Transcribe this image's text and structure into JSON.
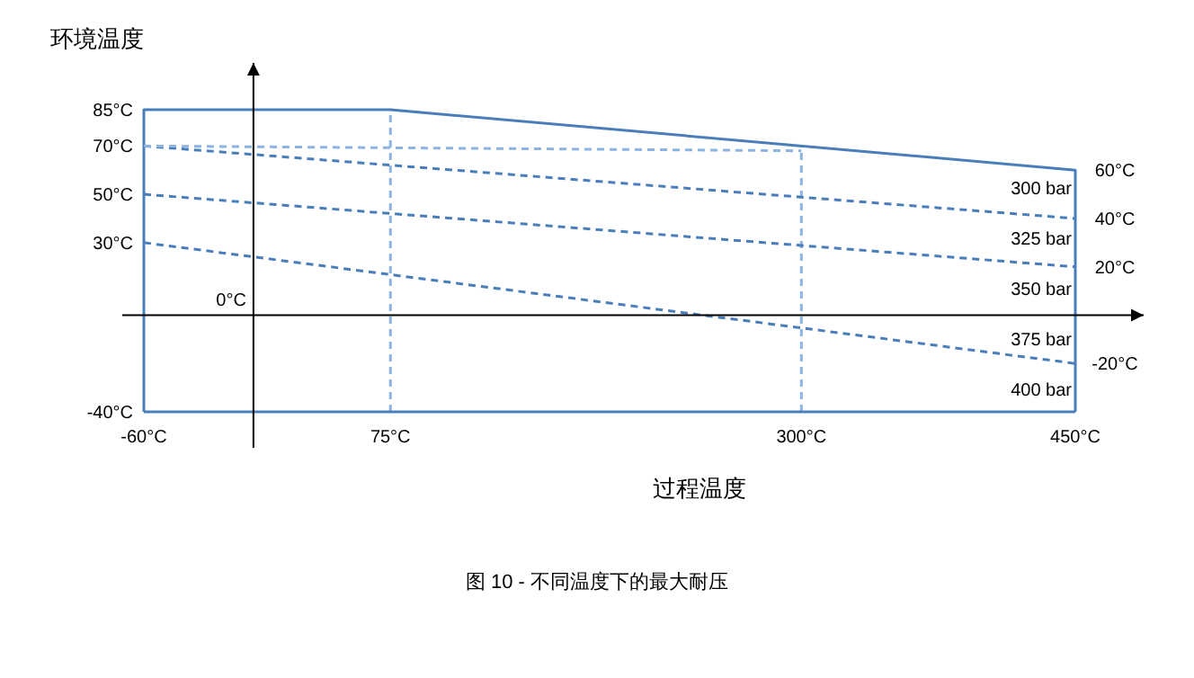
{
  "chart_data": {
    "type": "line",
    "ylabel": "环境温度",
    "xlabel": "过程温度",
    "xlim": [
      -60,
      450
    ],
    "ylim": [
      -40,
      85
    ],
    "y2lim": [
      -40,
      85
    ],
    "xticks": [
      {
        "value": -60,
        "label": "-60°C"
      },
      {
        "value": 75,
        "label": "75°C"
      },
      {
        "value": 300,
        "label": "300°C"
      },
      {
        "value": 450,
        "label": "450°C"
      }
    ],
    "yticks": [
      {
        "value": -40,
        "label": "-40°C"
      },
      {
        "value": 30,
        "label": "30°C"
      },
      {
        "value": 50,
        "label": "50°C"
      },
      {
        "value": 70,
        "label": "70°C"
      },
      {
        "value": 85,
        "label": "85°C"
      }
    ],
    "y2ticks": [
      {
        "value": 60,
        "label": "60°C"
      },
      {
        "value": 40,
        "label": "40°C"
      },
      {
        "value": 20,
        "label": "20°C"
      },
      {
        "value": -20,
        "label": "-20°C"
      }
    ],
    "series": [
      {
        "color": "#4a7ebb",
        "line_style": "solid",
        "x": [
          -60,
          -60,
          75,
          450,
          450
        ],
        "values": [
          -40,
          85,
          85,
          60,
          -40
        ]
      },
      {
        "color": "#4a7ebb",
        "line_style": "solid",
        "x": [
          -60,
          450
        ],
        "values": [
          -40,
          -40
        ]
      },
      {
        "color": "#4a7ebb",
        "line_style": "dashed",
        "x": [
          -60,
          450
        ],
        "values": [
          70,
          40
        ]
      },
      {
        "color": "#4a7ebb",
        "line_style": "dashed",
        "x": [
          -60,
          450
        ],
        "values": [
          50,
          20
        ]
      },
      {
        "color": "#4a7ebb",
        "line_style": "dashed",
        "x": [
          -60,
          450
        ],
        "values": [
          30,
          -20
        ]
      },
      {
        "color": "#8db3e2",
        "line_style": "dashed",
        "x": [
          -60,
          300
        ],
        "values": [
          70,
          68
        ]
      }
    ],
    "ref_lines": [
      {
        "axis": "x",
        "value": 75,
        "color": "#8db3e2",
        "line_style": "dashed"
      },
      {
        "axis": "x",
        "value": 300,
        "color": "#8db3e2",
        "line_style": "dashed"
      }
    ],
    "annotations": [
      "300 bar",
      "325 bar",
      "350 bar",
      "375 bar",
      "400 bar",
      "0°C",
      "图 10 - 不同温度下的最大耐压"
    ]
  }
}
